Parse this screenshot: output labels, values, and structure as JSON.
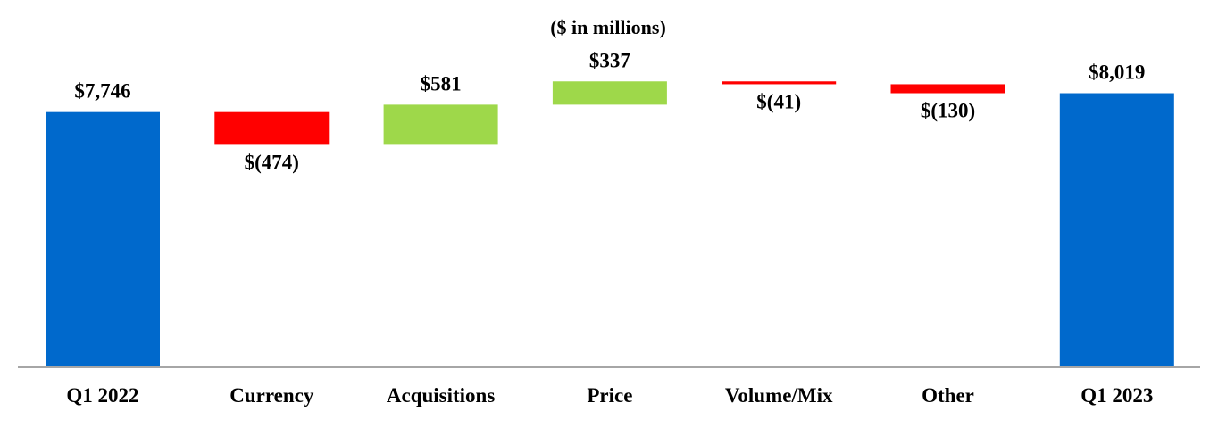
{
  "chart_data": {
    "type": "bar",
    "subtitle": "($ in millions)",
    "categories": [
      "Q1 2022",
      "Currency",
      "Acquisitions",
      "Price",
      "Volume/Mix",
      "Other",
      "Q1 2023"
    ],
    "steps": [
      {
        "category": "Q1 2022",
        "kind": "total",
        "value": 7746,
        "label": "$7,746"
      },
      {
        "category": "Currency",
        "kind": "decrease",
        "value": -474,
        "label": "$(474)"
      },
      {
        "category": "Acquisitions",
        "kind": "increase",
        "value": 581,
        "label": "$581"
      },
      {
        "category": "Price",
        "kind": "increase",
        "value": 337,
        "label": "$337"
      },
      {
        "category": "Volume/Mix",
        "kind": "decrease",
        "value": -41,
        "label": "$(41)"
      },
      {
        "category": "Other",
        "kind": "decrease",
        "value": -130,
        "label": "$(130)"
      },
      {
        "category": "Q1 2023",
        "kind": "total",
        "value": 8019,
        "label": "$8,019"
      }
    ],
    "ylim": [
      4050,
      8400
    ],
    "grid": false,
    "legend": "none",
    "colors": {
      "total": "#0069CC",
      "increase": "#9ED84A",
      "decrease": "#FF0000",
      "axis": "#A6A6A6"
    }
  }
}
